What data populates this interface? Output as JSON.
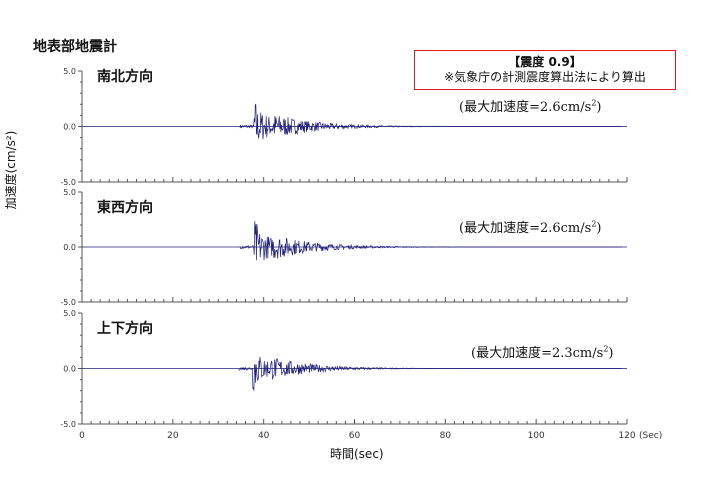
{
  "header": {
    "title": "地表部地震計"
  },
  "note": {
    "line1": "【震度 0.9】",
    "line2": "※気象庁の計測震度算出法により算出"
  },
  "colors": {
    "trace": "#1f1f7a",
    "note_border": "#e0141e",
    "axis": "#555555"
  },
  "chart_data": {
    "type": "line",
    "xlabel": "時間(sec)",
    "x_unit_label": "(Sec)",
    "ylabel": "加速度(cm/s²)",
    "xlim": [
      0,
      120
    ],
    "x_ticks": [
      0,
      20,
      40,
      60,
      80,
      100,
      120
    ],
    "ylim": [
      -5.0,
      5.0
    ],
    "y_ticks": [
      5.0,
      0.0,
      -5.0
    ],
    "panels": [
      {
        "label": "南北方向",
        "peak_label": "(最大加速度=2.6cm/s",
        "peak_sup": "2",
        "peak_close": ")",
        "peak_value": 2.6,
        "onset_sec": 37.8
      },
      {
        "label": "東西方向",
        "peak_label": "(最大加速度=2.6cm/s",
        "peak_sup": "2",
        "peak_close": ")",
        "peak_value": 2.6,
        "onset_sec": 37.8
      },
      {
        "label": "上下方向",
        "peak_label": "(最大加速度=2.3cm/s",
        "peak_sup": "2",
        "peak_close": ")",
        "peak_value": 2.3,
        "onset_sec": 37.5
      }
    ]
  }
}
